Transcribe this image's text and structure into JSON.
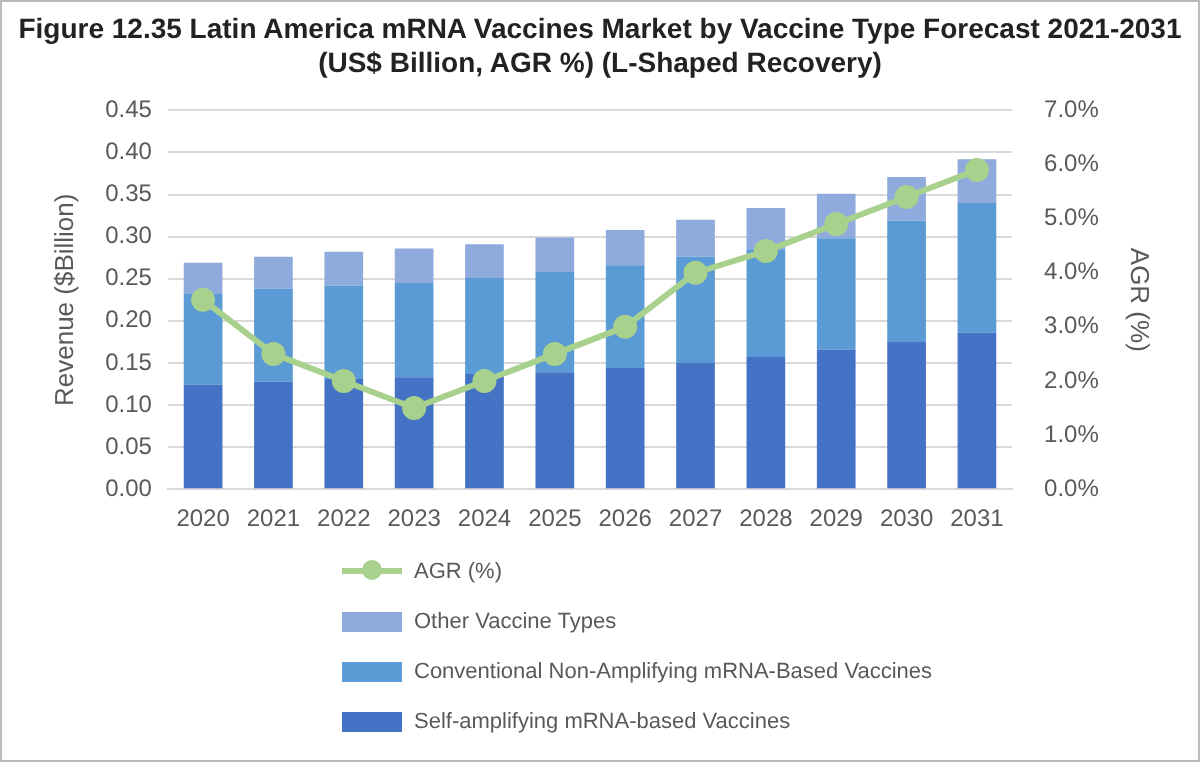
{
  "chart_data": {
    "type": "bar",
    "title": "Figure 12.35 Latin America mRNA Vaccines Market by Vaccine Type Forecast 2021-2031\n(US$ Billion, AGR %) (L-Shaped Recovery)",
    "categories": [
      "2020",
      "2021",
      "2022",
      "2023",
      "2024",
      "2025",
      "2026",
      "2027",
      "2028",
      "2029",
      "2030",
      "2031"
    ],
    "stacked": true,
    "ylabel": "Revenue ($Billion)",
    "y2label": "AGR (%)",
    "series": [
      {
        "name": "Self-amplifying mRNA-based Vaccines",
        "color": "#4472c4",
        "values": [
          0.124,
          0.128,
          0.131,
          0.133,
          0.137,
          0.139,
          0.144,
          0.15,
          0.157,
          0.166,
          0.175,
          0.186
        ]
      },
      {
        "name": "Conventional Non-Amplifying mRNA-Based Vaccines",
        "color": "#5b9bd5",
        "values": [
          0.108,
          0.11,
          0.111,
          0.112,
          0.114,
          0.119,
          0.122,
          0.126,
          0.128,
          0.132,
          0.144,
          0.154
        ]
      },
      {
        "name": "Other Vaccine Types",
        "color": "#8faadc",
        "values": [
          0.037,
          0.038,
          0.04,
          0.041,
          0.04,
          0.041,
          0.042,
          0.044,
          0.049,
          0.053,
          0.052,
          0.052
        ]
      },
      {
        "name": "AGR (%)",
        "type": "line",
        "axis": "y2",
        "color": "#a9d18e",
        "marker": "circle",
        "values": [
          3.5,
          2.5,
          2.0,
          1.5,
          2.0,
          2.5,
          3.0,
          4.0,
          4.4,
          4.9,
          5.4,
          5.9
        ]
      }
    ],
    "ylim": [
      0,
      0.45
    ],
    "yticks": [
      {
        "value": 0,
        "label": "0.00"
      },
      {
        "value": 0.05,
        "label": "0.05"
      },
      {
        "value": 0.1,
        "label": "0.10"
      },
      {
        "value": 0.15,
        "label": "0.15"
      },
      {
        "value": 0.2,
        "label": "0.20"
      },
      {
        "value": 0.25,
        "label": "0.25"
      },
      {
        "value": 0.3,
        "label": "0.30"
      },
      {
        "value": 0.35,
        "label": "0.35"
      },
      {
        "value": 0.4,
        "label": "0.40"
      },
      {
        "value": 0.45,
        "label": "0.45"
      }
    ],
    "y2lim": [
      0,
      7
    ],
    "y2ticks": [
      {
        "value": 0,
        "label": "0.0%"
      },
      {
        "value": 1,
        "label": "1.0%"
      },
      {
        "value": 2,
        "label": "2.0%"
      },
      {
        "value": 3,
        "label": "3.0%"
      },
      {
        "value": 4,
        "label": "4.0%"
      },
      {
        "value": 5,
        "label": "5.0%"
      },
      {
        "value": 6,
        "label": "6.0%"
      },
      {
        "value": 7,
        "label": "7.0%"
      }
    ],
    "grid": "y",
    "legend": "bottom"
  }
}
